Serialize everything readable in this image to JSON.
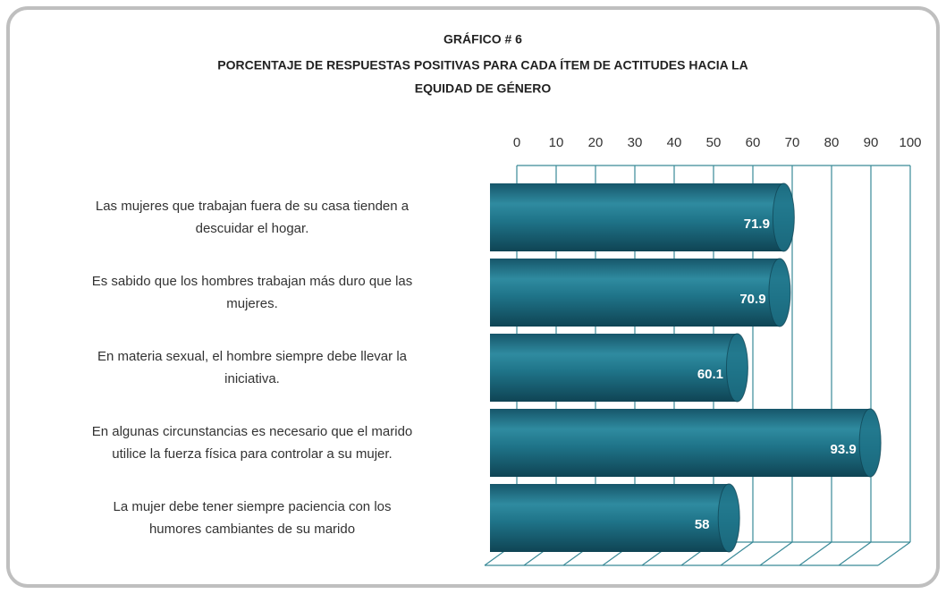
{
  "chart_data": {
    "type": "bar",
    "orientation": "horizontal",
    "title": "GRÁFICO # 6",
    "subtitle": [
      "PORCENTAJE DE RESPUESTAS POSITIVAS PARA CADA ÍTEM DE ACTITUDES HACIA LA",
      "EQUIDAD DE GÉNERO"
    ],
    "categories": [
      [
        "Las mujeres que trabajan fuera de su casa tienden a",
        "descuidar el hogar."
      ],
      [
        "Es sabido que los hombres trabajan más duro que las",
        "mujeres."
      ],
      [
        "En materia sexual, el hombre siempre debe llevar la",
        "iniciativa."
      ],
      [
        "En algunas circunstancias es necesario que el  marido",
        "utilice la fuerza física para controlar a su mujer."
      ],
      [
        "La mujer debe tener siempre paciencia con los",
        "humores cambiantes de su marido"
      ]
    ],
    "values": [
      71.9,
      70.9,
      60.1,
      93.9,
      58
    ],
    "color": "#1f7489",
    "xlim": [
      0,
      100
    ],
    "xticks": [
      0,
      10,
      20,
      30,
      40,
      50,
      60,
      70,
      80,
      90,
      100
    ],
    "grid": true,
    "grid_color": "#3a8a98"
  }
}
